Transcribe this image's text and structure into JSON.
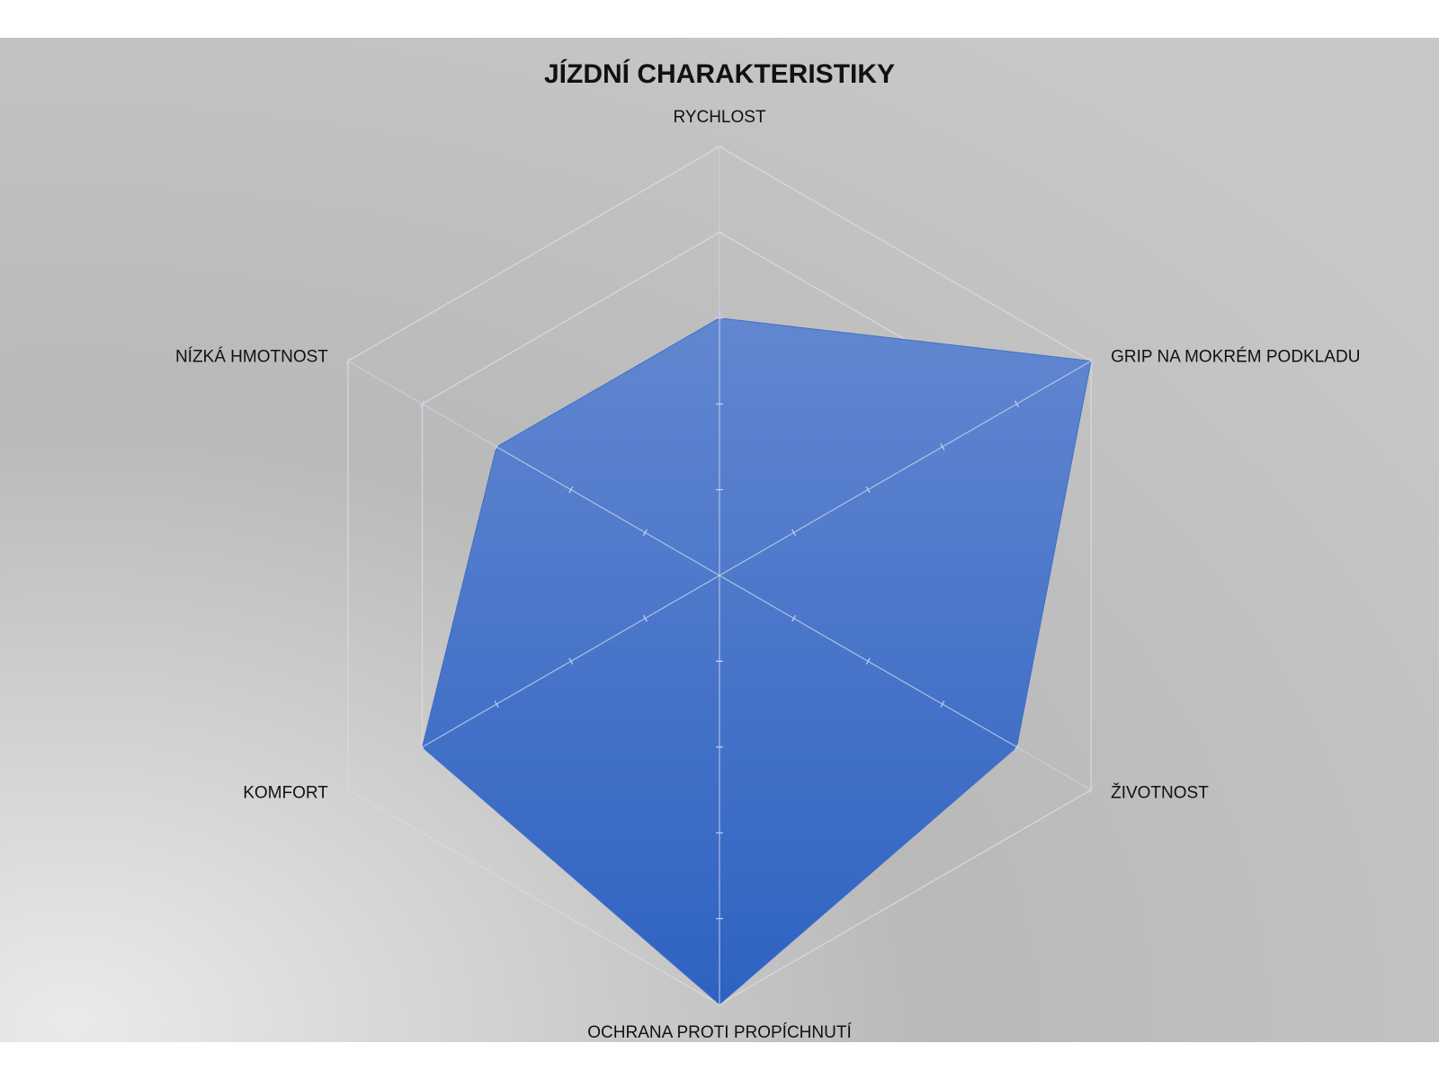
{
  "chart_data": {
    "type": "radar",
    "title": "JÍZDNÍ CHARAKTERISTIKY",
    "categories": [
      "RYCHLOST",
      "GRIP NA MOKRÉM PODKLADU",
      "ŽIVOTNOST",
      "OCHRANA PROTI PROPÍCHNUTÍ",
      "KOMFORT",
      "NÍZKÁ HMOTNOST"
    ],
    "values": [
      3,
      5,
      4,
      5,
      4,
      3
    ],
    "color": "#3f6fca",
    "rlim": [
      0,
      5
    ],
    "rticks": [
      1,
      2,
      3,
      4,
      5
    ],
    "grid": true
  }
}
